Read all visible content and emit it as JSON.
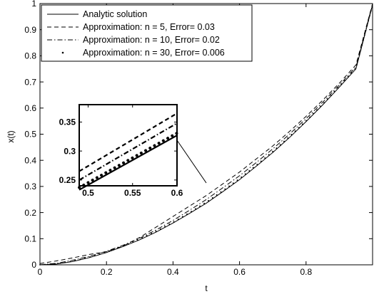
{
  "chart_data": {
    "type": "line",
    "xlabel": "t",
    "ylabel": "x(t)",
    "xlim": [
      0,
      1
    ],
    "ylim": [
      0,
      1
    ],
    "x_ticks": [
      0,
      0.2,
      0.4,
      0.6,
      0.8
    ],
    "x_tick_labels": [
      "0",
      "0.2",
      "0.4",
      "0.6",
      "0.8"
    ],
    "y_ticks": [
      0,
      0.1,
      0.2,
      0.3,
      0.4,
      0.5,
      0.6,
      0.7,
      0.8,
      0.9,
      1
    ],
    "y_tick_labels": [
      "0",
      "0.1",
      "0.2",
      "0.3",
      "0.4",
      "0.5",
      "0.6",
      "0.7",
      "0.8",
      "0.9",
      "1"
    ],
    "grid": false,
    "legend_position": "top-left",
    "series": [
      {
        "name": "Analytic solution",
        "style": "solid",
        "x": [
          0,
          0.05,
          0.1,
          0.15,
          0.2,
          0.25,
          0.3,
          0.35,
          0.4,
          0.45,
          0.5,
          0.55,
          0.6,
          0.65,
          0.7,
          0.75,
          0.8,
          0.85,
          0.9,
          0.95,
          1
        ],
        "y": [
          0,
          0.003,
          0.013,
          0.028,
          0.047,
          0.07,
          0.096,
          0.126,
          0.16,
          0.197,
          0.236,
          0.28,
          0.326,
          0.377,
          0.43,
          0.487,
          0.548,
          0.612,
          0.68,
          0.75,
          0.995
        ]
      },
      {
        "name": "Approximation: n = 5, Error= 0.03",
        "style": "dashed",
        "x": [
          0,
          0.05,
          0.1,
          0.15,
          0.2,
          0.25,
          0.3,
          0.35,
          0.4,
          0.45,
          0.5,
          0.55,
          0.6,
          0.65,
          0.7,
          0.75,
          0.8,
          0.85,
          0.9,
          0.95,
          1
        ],
        "y": [
          0.005,
          0.015,
          0.027,
          0.04,
          0.05,
          0.072,
          0.105,
          0.145,
          0.185,
          0.225,
          0.265,
          0.31,
          0.355,
          0.405,
          0.455,
          0.51,
          0.568,
          0.63,
          0.695,
          0.765,
          1.0
        ]
      },
      {
        "name": "Approximation: n = 10, Error= 0.02",
        "style": "dashdot",
        "x": [
          0,
          0.05,
          0.1,
          0.15,
          0.2,
          0.25,
          0.3,
          0.35,
          0.4,
          0.45,
          0.5,
          0.55,
          0.6,
          0.65,
          0.7,
          0.75,
          0.8,
          0.85,
          0.9,
          0.95,
          1
        ],
        "y": [
          0,
          0.006,
          0.018,
          0.033,
          0.052,
          0.075,
          0.102,
          0.134,
          0.17,
          0.209,
          0.25,
          0.295,
          0.341,
          0.391,
          0.444,
          0.5,
          0.559,
          0.622,
          0.688,
          0.757,
          0.998
        ]
      },
      {
        "name": "Approximation: n = 30, Error= 0.006",
        "style": "dotted",
        "x": [
          0,
          0.05,
          0.1,
          0.15,
          0.2,
          0.25,
          0.3,
          0.35,
          0.4,
          0.45,
          0.5,
          0.55,
          0.6,
          0.65,
          0.7,
          0.75,
          0.8,
          0.85,
          0.9,
          0.95,
          1
        ],
        "y": [
          0,
          0.004,
          0.015,
          0.03,
          0.049,
          0.072,
          0.099,
          0.129,
          0.163,
          0.2,
          0.24,
          0.284,
          0.33,
          0.381,
          0.434,
          0.491,
          0.551,
          0.615,
          0.683,
          0.753,
          0.995
        ]
      }
    ],
    "inset": {
      "xlim": [
        0.49,
        0.6
      ],
      "ylim": [
        0.24,
        0.38
      ],
      "x_ticks": [
        0.5,
        0.55,
        0.6
      ],
      "x_tick_labels": [
        "0.5",
        "0.55",
        "0.6"
      ],
      "y_ticks": [
        0.25,
        0.3,
        0.35
      ],
      "y_tick_labels": [
        "0.25",
        "0.3",
        "0.35"
      ],
      "zoom_target": {
        "x": 0.5,
        "y": 0.265
      },
      "series": [
        {
          "style": "solid",
          "x": [
            0.49,
            0.6
          ],
          "y": [
            0.233,
            0.327
          ]
        },
        {
          "style": "dashed",
          "x": [
            0.49,
            0.6
          ],
          "y": [
            0.265,
            0.365
          ]
        },
        {
          "style": "dashdot",
          "x": [
            0.49,
            0.6
          ],
          "y": [
            0.25,
            0.348
          ]
        },
        {
          "style": "dotted",
          "x": [
            0.49,
            0.6
          ],
          "y": [
            0.237,
            0.331
          ]
        }
      ]
    }
  }
}
